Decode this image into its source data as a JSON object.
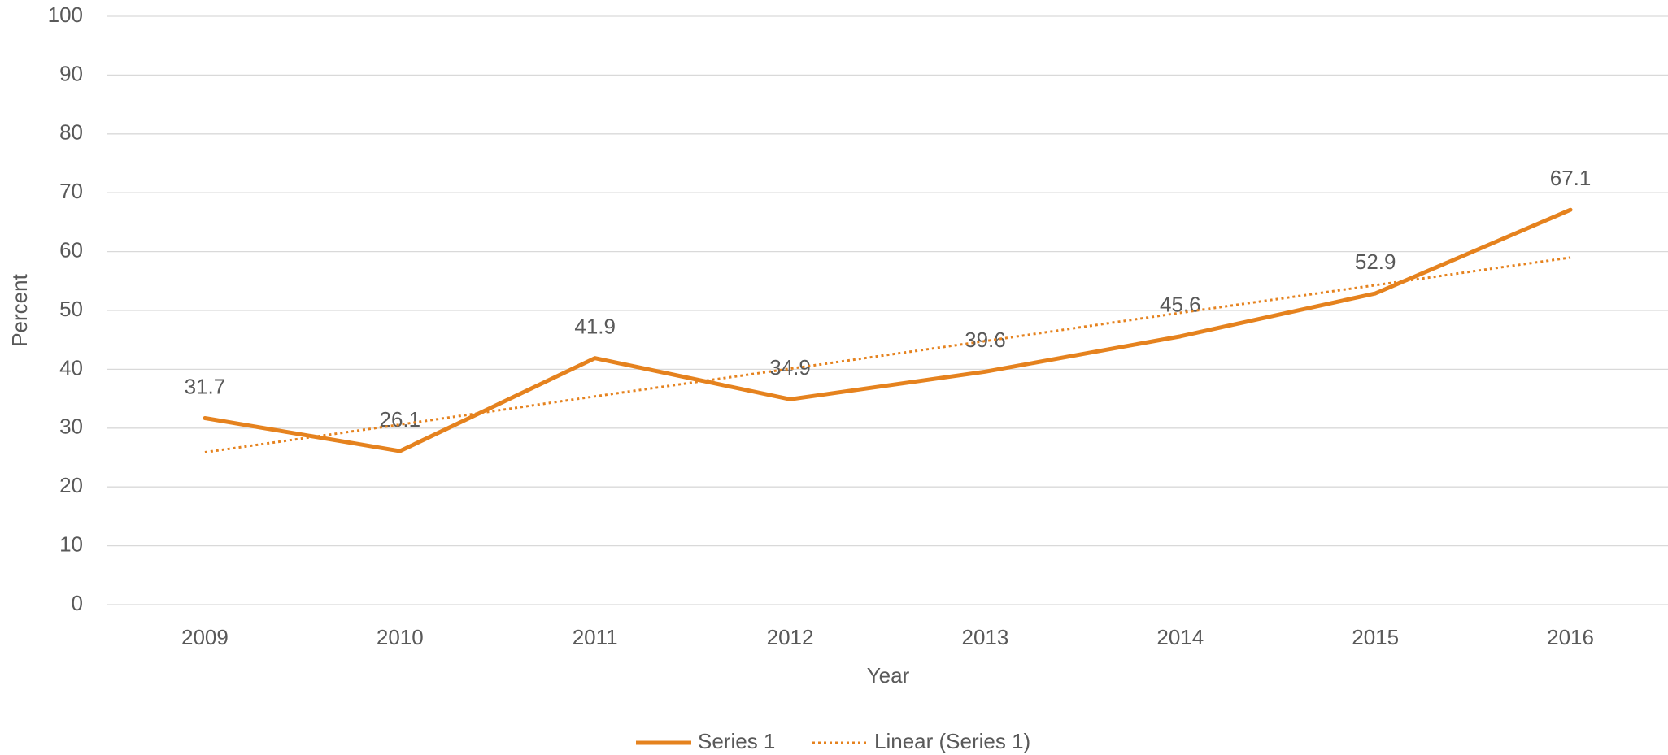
{
  "chart_data": {
    "type": "line",
    "x_label": "Year",
    "y_label": "Percent",
    "categories": [
      "2009",
      "2010",
      "2011",
      "2012",
      "2013",
      "2014",
      "2015",
      "2016"
    ],
    "series": [
      {
        "name": "Series 1",
        "color": "#e5821e",
        "style": "solid",
        "data_labels": true,
        "values": [
          31.7,
          26.1,
          41.9,
          34.9,
          39.6,
          45.6,
          52.9,
          67.1
        ]
      },
      {
        "name": "Linear (Series 1)",
        "color": "#e5821e",
        "style": "dotted",
        "data_labels": false,
        "values": [
          25.9,
          30.6,
          35.4,
          40.1,
          44.8,
          49.6,
          54.3,
          59.0
        ]
      }
    ],
    "ylim": [
      0,
      100
    ],
    "yticks": [
      0,
      10,
      20,
      30,
      40,
      50,
      60,
      70,
      80,
      90,
      100
    ],
    "grid": true,
    "legend": "bottom"
  }
}
